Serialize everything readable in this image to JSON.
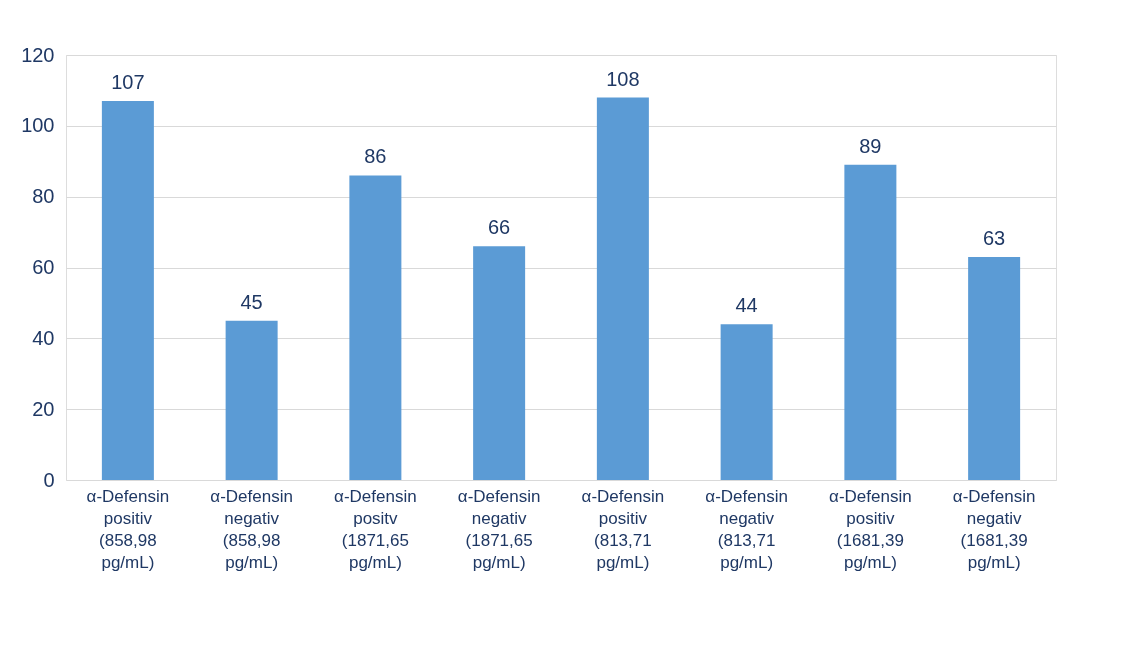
{
  "chart_data": {
    "type": "bar",
    "categories": [
      "α-Defensin\npositiv\n(858,98\npg/mL)",
      "α-Defensin\nnegativ\n(858,98\npg/mL)",
      "α-Defensin\npositv\n(1871,65\npg/mL)",
      "α-Defensin\nnegativ\n(1871,65\npg/mL)",
      "α-Defensin\npositiv\n(813,71\npg/mL)",
      "α-Defensin\nnegativ\n(813,71\npg/mL)",
      "α-Defensin\npositiv\n(1681,39\npg/mL)",
      "α-Defensin\nnegativ\n(1681,39\npg/mL)"
    ],
    "values": [
      107,
      45,
      86,
      66,
      108,
      44,
      89,
      63
    ],
    "color": "#5b9bd5",
    "ylim": [
      0,
      120
    ],
    "yticks": [
      0,
      20,
      40,
      60,
      80,
      100,
      120
    ],
    "grid": "y",
    "data_labels": true
  }
}
